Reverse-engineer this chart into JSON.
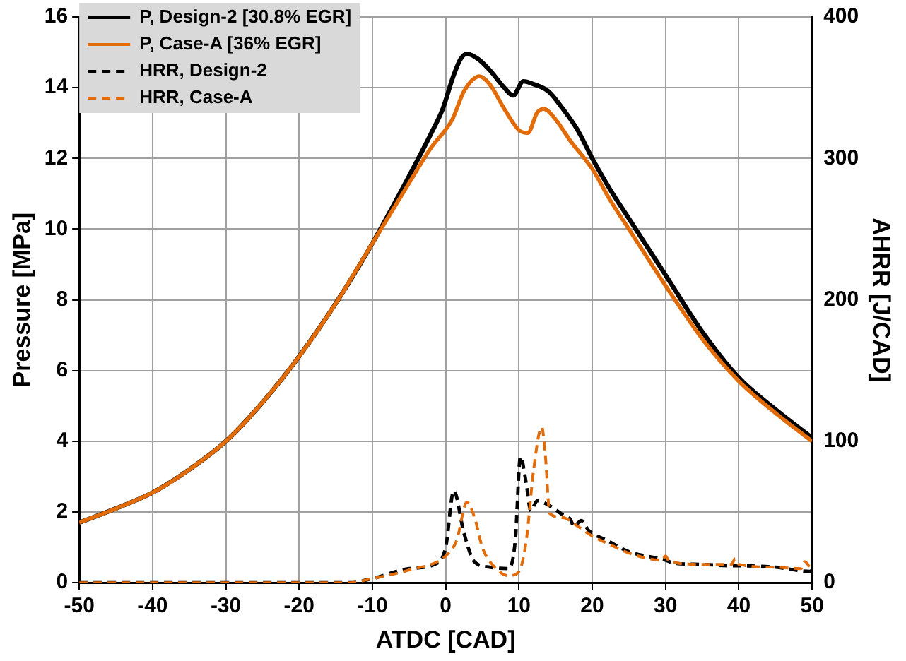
{
  "chart_data": {
    "type": "line",
    "xlabel": "ATDC [CAD]",
    "ylabel": "Pressure [MPa]",
    "y2label": "AHRR [J/CAD]",
    "xlim": [
      -50,
      50
    ],
    "xticks": [
      -50,
      -40,
      -30,
      -20,
      -10,
      0,
      10,
      20,
      30,
      40,
      50
    ],
    "ylim": [
      0,
      16
    ],
    "yticks": [
      0,
      2,
      4,
      6,
      8,
      10,
      12,
      14,
      16
    ],
    "y2lim": [
      0,
      400
    ],
    "y2ticks": [
      0,
      100,
      200,
      300,
      400
    ],
    "grid": true,
    "legend": "top left",
    "marker": "none",
    "series": [
      {
        "name": "P, Design-2 [30.8% EGR]",
        "color": "#000000",
        "line_style": "solid",
        "x": [
          -50,
          -45,
          -40,
          -35,
          -30,
          -25,
          -20,
          -15,
          -10,
          -5,
          -2,
          -0.4,
          1,
          2,
          2.9,
          4.5,
          6,
          8,
          9.2,
          10.6,
          12,
          14,
          16,
          18,
          20,
          22.5,
          25,
          30,
          35,
          40,
          45,
          50
        ],
        "values": [
          1.7,
          2.1,
          2.55,
          3.2,
          4.0,
          5.1,
          6.4,
          7.9,
          9.6,
          11.5,
          12.7,
          13.4,
          14.3,
          14.8,
          14.96,
          14.8,
          14.5,
          14.0,
          13.78,
          14.18,
          14.1,
          13.9,
          13.4,
          12.8,
          12.0,
          11.1,
          10.3,
          8.7,
          7.1,
          5.8,
          4.9,
          4.1
        ]
      },
      {
        "name": "P, Case-A [36% EGR]",
        "color": "#e36c0a",
        "line_style": "solid",
        "x": [
          -50,
          -45,
          -40,
          -35,
          -30,
          -25,
          -20,
          -15,
          -10,
          -5,
          -2,
          0.9,
          2.5,
          4.6,
          6,
          8,
          10,
          11.2,
          12.5,
          13.4,
          15,
          17,
          20,
          22.5,
          25,
          30,
          35,
          40,
          45,
          50
        ],
        "values": [
          1.7,
          2.1,
          2.55,
          3.2,
          4.0,
          5.1,
          6.4,
          7.9,
          9.6,
          11.3,
          12.3,
          13.1,
          13.9,
          14.32,
          14.1,
          13.4,
          12.8,
          12.72,
          13.3,
          13.4,
          13.1,
          12.5,
          11.7,
          10.8,
          10.0,
          8.4,
          6.9,
          5.7,
          4.8,
          4.0
        ]
      },
      {
        "name": "HRR, Design-2",
        "color": "#000000",
        "line_style": "dashed",
        "axis": "y2",
        "x": [
          -50,
          -30,
          -13,
          -10,
          -5,
          -1.5,
          0,
          1.1,
          2.5,
          3.9,
          6,
          8.6,
          9.5,
          10.2,
          11,
          11.6,
          12.5,
          14,
          16,
          17,
          17.5,
          18.5,
          19.5,
          22,
          25,
          30,
          31,
          35,
          39,
          40,
          45,
          49.7,
          50
        ],
        "values": [
          0,
          0,
          0,
          3,
          10,
          13,
          25,
          65,
          35,
          15,
          11,
          10,
          30,
          89,
          70,
          51,
          58,
          55,
          48,
          45,
          40,
          44,
          37,
          30,
          22,
          16,
          14,
          13,
          12,
          12,
          11,
          8,
          9
        ]
      },
      {
        "name": "HRR, Case-A",
        "color": "#e36c0a",
        "line_style": "dashed",
        "axis": "y2",
        "x": [
          -50,
          -13,
          -10,
          -5,
          0,
          1.5,
          2.9,
          4,
          5,
          6.5,
          8.6,
          10,
          11,
          12,
          13.1,
          13.6,
          14.2,
          16,
          18,
          20,
          22,
          25,
          29.5,
          30,
          30.5,
          35,
          39,
          39.5,
          40,
          45,
          48.5,
          49,
          50
        ],
        "values": [
          0,
          0,
          3,
          9,
          19,
          30,
          57,
          45,
          25,
          12,
          5,
          8,
          30,
          80,
          110,
          90,
          49,
          46,
          40,
          33,
          28,
          21,
          16,
          19,
          15,
          13,
          13,
          17,
          13,
          11,
          10,
          15,
          8
        ]
      }
    ]
  }
}
